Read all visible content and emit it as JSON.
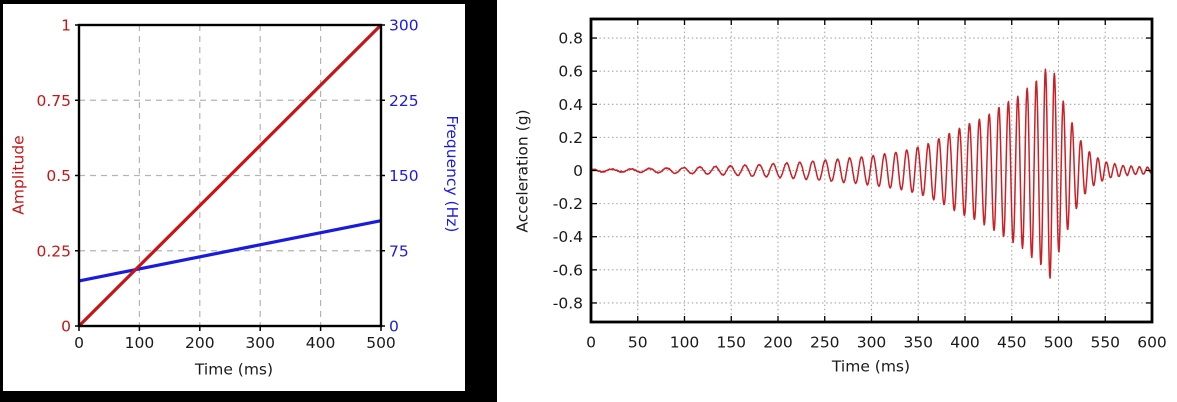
{
  "page": {
    "background": "#ffffff",
    "left_frame_color": "#000000"
  },
  "colors": {
    "amplitude_red": "#c81414",
    "frequency_blue": "#1b1be0",
    "waveform_red": "#cb2026",
    "grid_dash_gray": "#b4b4b4",
    "grid_dot_gray": "#a6a6a6",
    "axis_black": "#000000",
    "tick_text": "#1a1a1a"
  },
  "chart_data": [
    {
      "type": "line",
      "name": "sweep-definition-chart",
      "title": "",
      "xlabel": "Time (ms)",
      "xlim": [
        0,
        500
      ],
      "x_ticks": [
        0,
        100,
        200,
        300,
        400,
        500
      ],
      "x_tick_labels": [
        "0",
        "100",
        "200",
        "300",
        "400",
        "500"
      ],
      "grid": {
        "style": "dashed",
        "x_lines": [
          100,
          200,
          300,
          400
        ],
        "y_lines_left_axis": [
          0.25,
          0.5,
          0.75
        ]
      },
      "left_axis": {
        "label": "Amplitude",
        "color": "#c81414",
        "lim": [
          0,
          1
        ],
        "ticks": [
          0,
          0.25,
          0.5,
          0.75,
          1
        ],
        "tick_labels": [
          "0",
          "0.25",
          "0.5",
          "0.75",
          "1"
        ]
      },
      "right_axis": {
        "label": "Frequency (Hz)",
        "color": "#1b1be0",
        "lim": [
          0,
          300
        ],
        "ticks": [
          0,
          75,
          150,
          225,
          300
        ],
        "tick_labels": [
          "0",
          "75",
          "150",
          "225",
          "300"
        ]
      },
      "series": [
        {
          "name": "Frequency (Hz)",
          "axis": "right",
          "color": "#1b1be0",
          "width": 3.2,
          "points": [
            [
              0,
              45
            ],
            [
              500,
              105
            ]
          ]
        },
        {
          "name": "Amplitude",
          "axis": "left",
          "color": "#c81414",
          "width": 3.2,
          "points": [
            [
              0,
              0
            ],
            [
              500,
              1
            ]
          ]
        }
      ]
    },
    {
      "type": "line",
      "name": "acceleration-waveform-chart",
      "title": "",
      "xlabel": "Time (ms)",
      "ylabel": "Acceleration (g)",
      "xlim": [
        0,
        600
      ],
      "x_ticks": [
        0,
        50,
        100,
        150,
        200,
        250,
        300,
        350,
        400,
        450,
        500,
        550,
        600
      ],
      "x_tick_labels": [
        "0",
        "50",
        "100",
        "150",
        "200",
        "250",
        "300",
        "350",
        "400",
        "450",
        "500",
        "550",
        "600"
      ],
      "ylim": [
        -0.915,
        0.915
      ],
      "y_ticks": [
        0.8,
        0.6,
        0.4,
        0.2,
        0,
        -0.2,
        -0.4,
        -0.6,
        -0.8
      ],
      "y_tick_labels": [
        "0.8",
        "0.6",
        "0.4",
        "0.2",
        "0",
        "-0.2",
        "-0.4",
        "-0.6",
        "-0.8"
      ],
      "grid": {
        "style": "dotted",
        "x_step": 50,
        "y_step": 0.2
      },
      "series": [
        {
          "name": "acceleration",
          "color": "#cb2026",
          "width": 1.5,
          "generator": {
            "kind": "sine-sweep-chirp",
            "freq_start_hz": 45,
            "freq_slope_hz_per_ms": 0.12,
            "phase_offset_rad": 1.307,
            "sample_step_ms": 0.5,
            "noise_amp_g": 0.003,
            "envelope_points": [
              [
                0,
                0.008
              ],
              [
                40,
                0.009
              ],
              [
                80,
                0.014
              ],
              [
                100,
                0.018
              ],
              [
                120,
                0.022
              ],
              [
                150,
                0.028
              ],
              [
                175,
                0.034
              ],
              [
                200,
                0.042
              ],
              [
                225,
                0.05
              ],
              [
                250,
                0.062
              ],
              [
                275,
                0.074
              ],
              [
                300,
                0.088
              ],
              [
                315,
                0.1
              ],
              [
                330,
                0.115
              ],
              [
                345,
                0.135
              ],
              [
                360,
                0.16
              ],
              [
                375,
                0.2
              ],
              [
                390,
                0.245
              ],
              [
                400,
                0.275
              ],
              [
                415,
                0.31
              ],
              [
                425,
                0.34
              ],
              [
                435,
                0.38
              ],
              [
                450,
                0.43
              ],
              [
                460,
                0.46
              ],
              [
                470,
                0.52
              ],
              [
                480,
                0.56
              ],
              [
                488,
                0.63
              ],
              [
                492,
                0.66
              ],
              [
                496,
                0.58
              ],
              [
                500,
                0.5
              ],
              [
                505,
                0.42
              ],
              [
                510,
                0.36
              ],
              [
                515,
                0.28
              ],
              [
                520,
                0.22
              ],
              [
                525,
                0.17
              ],
              [
                530,
                0.13
              ],
              [
                537,
                0.095
              ],
              [
                545,
                0.068
              ],
              [
                552,
                0.05
              ],
              [
                560,
                0.04
              ],
              [
                570,
                0.03
              ],
              [
                580,
                0.025
              ],
              [
                600,
                0.018
              ]
            ]
          },
          "peak_positive": {
            "t_ms": 486,
            "value_g": 0.61
          },
          "peak_negative": {
            "t_ms": 491,
            "value_g": -0.65
          }
        }
      ]
    }
  ]
}
